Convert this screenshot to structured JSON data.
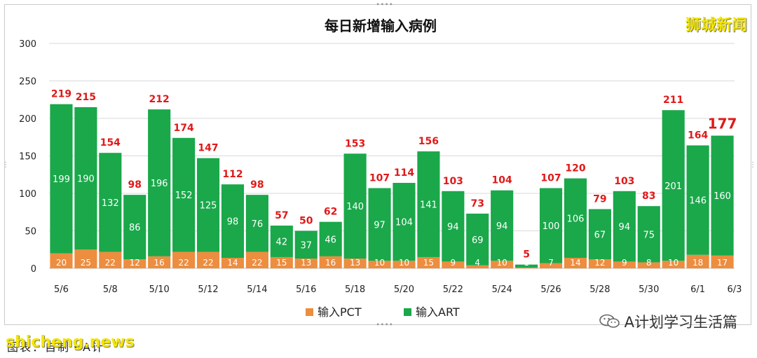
{
  "branding": {
    "watermark_top": "狮城新闻",
    "footer_site": "shicheng.news",
    "footer_caption": "图表：自制・A计",
    "account_name": "A计划学习生活篇",
    "account_icon": "wechat-icon"
  },
  "chart_data": {
    "type": "bar",
    "stacked": true,
    "title": "每日新增输入病例",
    "categories": [
      "5/6",
      "5/7",
      "5/8",
      "5/9",
      "5/10",
      "5/11",
      "5/12",
      "5/13",
      "5/14",
      "5/15",
      "5/16",
      "5/17",
      "5/18",
      "5/19",
      "5/20",
      "5/21",
      "5/22",
      "5/23",
      "5/24",
      "5/25",
      "5/26",
      "5/27",
      "5/28",
      "5/29",
      "5/30",
      "5/31",
      "6/1",
      "6/2"
    ],
    "x_tick_labels": [
      "5/6",
      "5/8",
      "5/10",
      "5/12",
      "5/14",
      "5/16",
      "5/18",
      "5/20",
      "5/22",
      "5/24",
      "5/26",
      "5/28",
      "5/30",
      "6/1",
      "6/3"
    ],
    "series": [
      {
        "name": "输入PCT",
        "color": "#ed8d3f",
        "values": [
          20,
          25,
          22,
          12,
          16,
          22,
          22,
          14,
          22,
          15,
          13,
          16,
          13,
          10,
          10,
          15,
          9,
          4,
          10,
          1,
          7,
          14,
          12,
          9,
          8,
          10,
          18,
          17
        ]
      },
      {
        "name": "输入ART",
        "color": "#1aa84a",
        "values": [
          199,
          190,
          132,
          86,
          196,
          152,
          125,
          98,
          76,
          42,
          37,
          46,
          140,
          97,
          104,
          141,
          94,
          69,
          94,
          4,
          100,
          106,
          67,
          94,
          75,
          201,
          146,
          160
        ]
      }
    ],
    "totals": [
      219,
      215,
      154,
      98,
      212,
      174,
      147,
      112,
      98,
      57,
      50,
      62,
      153,
      107,
      114,
      156,
      103,
      73,
      104,
      5,
      107,
      120,
      79,
      103,
      83,
      211,
      164,
      177
    ],
    "ylim": [
      0,
      300
    ],
    "yticks": [
      0,
      50,
      100,
      150,
      200,
      250,
      300
    ],
    "grid": true,
    "legend_position": "bottom",
    "xlabel": "",
    "ylabel": ""
  }
}
